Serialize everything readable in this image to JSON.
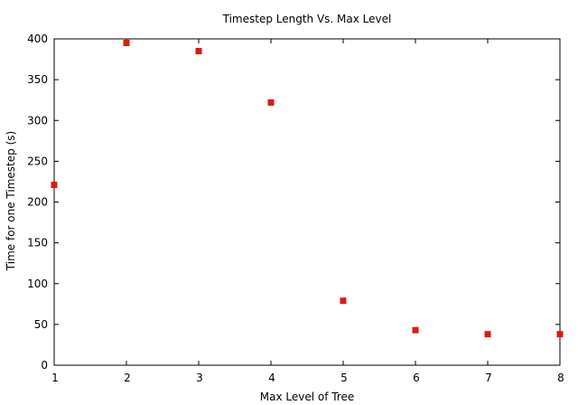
{
  "chart_data": {
    "type": "scatter",
    "title": "Timestep Length Vs. Max Level",
    "xlabel": "Max Level of Tree",
    "ylabel": "Time for one Timestep (s)",
    "xlim": [
      1,
      8
    ],
    "ylim": [
      0,
      400
    ],
    "xticks": [
      "1",
      "2",
      "3",
      "4",
      "5",
      "6",
      "7",
      "8"
    ],
    "yticks": [
      "0",
      "50",
      "100",
      "150",
      "200",
      "250",
      "300",
      "350",
      "400"
    ],
    "grid": false,
    "legend": false,
    "marker_color": "#dd1a12",
    "marker": "square",
    "series": [
      {
        "x": [
          1,
          2,
          3,
          4,
          5,
          6,
          7,
          8
        ],
        "y": [
          221,
          395,
          385,
          322,
          79,
          43,
          38,
          38
        ]
      }
    ]
  }
}
